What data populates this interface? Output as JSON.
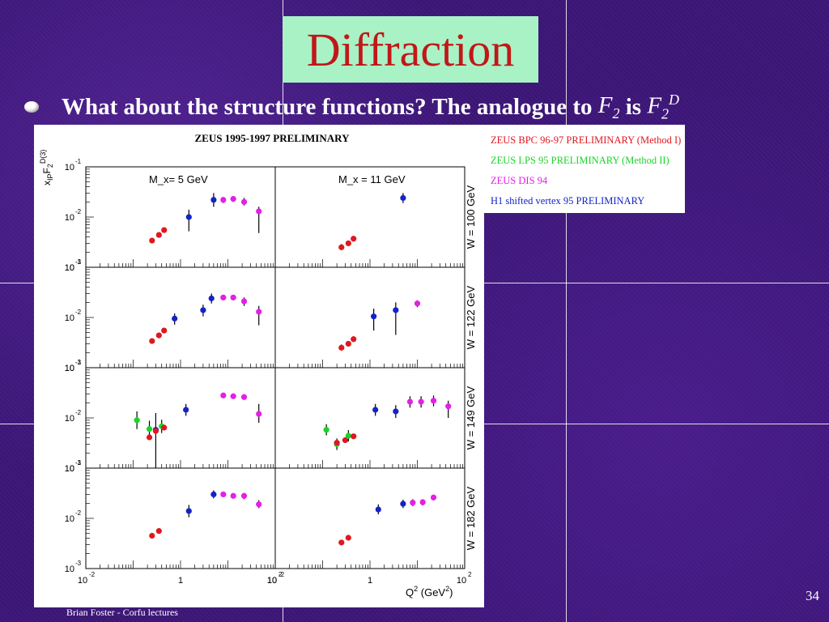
{
  "slide": {
    "title": "Diffraction",
    "bullet": {
      "text_main": "What about the structure functions? The analogue to ",
      "f2": "F",
      "f2_sub": "2",
      "is": " is ",
      "f2d": "F",
      "f2d_sub": "2",
      "f2d_sup": "D"
    },
    "footer": "Brian Foster - Corfu lectures",
    "page_number": "34",
    "colors": {
      "background": "#3c1678",
      "title_box": "#a8f2c6",
      "title_text": "#c01818",
      "text": "#ffffff"
    }
  },
  "legend": {
    "items": [
      {
        "label": "ZEUS BPC 96-97 PRELIMINARY (Method I)",
        "color": "#e0171f"
      },
      {
        "label": "ZEUS LPS 95 PRELIMINARY (Method II)",
        "color": "#19d428"
      },
      {
        "label": "ZEUS DIS 94",
        "color": "#e61ee6"
      },
      {
        "label": "H1 shifted vertex 95 PRELIMINARY",
        "color": "#1422c8"
      }
    ]
  },
  "chart_data": {
    "type": "scatter",
    "title": "ZEUS 1995-1997 PRELIMINARY",
    "ylabel": "x_IP F2^D(3)",
    "xlabel": "Q² (GeV²)",
    "x_scale": "log",
    "y_scale": "log",
    "xlim": [
      0.01,
      100
    ],
    "ylim": [
      0.001,
      0.1
    ],
    "x_tick_labels": [
      "10⁻²",
      "1",
      "10²"
    ],
    "y_tick_labels": [
      "10⁻¹",
      "10⁻²",
      "10⁻³"
    ],
    "columns": [
      "M_x= 5 GeV",
      "M_x = 11 GeV"
    ],
    "rows": [
      "W = 100 GeV",
      "W = 122 GeV",
      "W = 149 GeV",
      "W = 182 GeV"
    ],
    "series_names": [
      "ZEUS BPC 96-97 PRELIMINARY (Method I)",
      "ZEUS LPS 95 PRELIMINARY (Method II)",
      "ZEUS DIS 94",
      "H1 shifted vertex 95 PRELIMINARY"
    ],
    "series_colors": [
      "#e0171f",
      "#19d428",
      "#e61ee6",
      "#1422c8"
    ],
    "panels": [
      {
        "row": 0,
        "col": 0,
        "points": [
          {
            "s": 0,
            "x": 0.25,
            "y": 0.0034,
            "lo": 0.0031,
            "hi": 0.0037
          },
          {
            "s": 0,
            "x": 0.35,
            "y": 0.0044,
            "lo": 0.004,
            "hi": 0.0048
          },
          {
            "s": 0,
            "x": 0.45,
            "y": 0.0055,
            "lo": 0.005,
            "hi": 0.006
          },
          {
            "s": 3,
            "x": 1.5,
            "y": 0.01,
            "lo": 0.0052,
            "hi": 0.014
          },
          {
            "s": 3,
            "x": 5,
            "y": 0.022,
            "lo": 0.016,
            "hi": 0.03
          },
          {
            "s": 2,
            "x": 8,
            "y": 0.022,
            "lo": 0.019,
            "hi": 0.025
          },
          {
            "s": 2,
            "x": 13,
            "y": 0.023,
            "lo": 0.02,
            "hi": 0.026
          },
          {
            "s": 2,
            "x": 22,
            "y": 0.02,
            "lo": 0.017,
            "hi": 0.024
          },
          {
            "s": 2,
            "x": 45,
            "y": 0.013,
            "lo": 0.0048,
            "hi": 0.016
          }
        ]
      },
      {
        "row": 0,
        "col": 1,
        "points": [
          {
            "s": 0,
            "x": 0.25,
            "y": 0.0025,
            "lo": 0.0022,
            "hi": 0.0029
          },
          {
            "s": 0,
            "x": 0.35,
            "y": 0.003,
            "lo": 0.0027,
            "hi": 0.0034
          },
          {
            "s": 0,
            "x": 0.45,
            "y": 0.0037,
            "lo": 0.0033,
            "hi": 0.0042
          },
          {
            "s": 3,
            "x": 5,
            "y": 0.024,
            "lo": 0.019,
            "hi": 0.03
          }
        ]
      },
      {
        "row": 1,
        "col": 0,
        "points": [
          {
            "s": 0,
            "x": 0.25,
            "y": 0.0034,
            "lo": 0.0031,
            "hi": 0.0037
          },
          {
            "s": 0,
            "x": 0.35,
            "y": 0.0044,
            "lo": 0.004,
            "hi": 0.0048
          },
          {
            "s": 0,
            "x": 0.45,
            "y": 0.0055,
            "lo": 0.005,
            "hi": 0.006
          },
          {
            "s": 3,
            "x": 0.75,
            "y": 0.0095,
            "lo": 0.0072,
            "hi": 0.012
          },
          {
            "s": 3,
            "x": 3,
            "y": 0.014,
            "lo": 0.0105,
            "hi": 0.018
          },
          {
            "s": 3,
            "x": 4.5,
            "y": 0.024,
            "lo": 0.019,
            "hi": 0.03
          },
          {
            "s": 2,
            "x": 8,
            "y": 0.025,
            "lo": 0.022,
            "hi": 0.028
          },
          {
            "s": 2,
            "x": 13,
            "y": 0.025,
            "lo": 0.022,
            "hi": 0.028
          },
          {
            "s": 2,
            "x": 22,
            "y": 0.021,
            "lo": 0.017,
            "hi": 0.025
          },
          {
            "s": 2,
            "x": 45,
            "y": 0.013,
            "lo": 0.007,
            "hi": 0.017
          }
        ]
      },
      {
        "row": 1,
        "col": 1,
        "points": [
          {
            "s": 0,
            "x": 0.25,
            "y": 0.0025,
            "lo": 0.0022,
            "hi": 0.0029
          },
          {
            "s": 0,
            "x": 0.35,
            "y": 0.003,
            "lo": 0.0027,
            "hi": 0.0034
          },
          {
            "s": 0,
            "x": 0.45,
            "y": 0.0037,
            "lo": 0.0033,
            "hi": 0.0042
          },
          {
            "s": 3,
            "x": 1.2,
            "y": 0.0105,
            "lo": 0.0055,
            "hi": 0.015
          },
          {
            "s": 3,
            "x": 3.5,
            "y": 0.014,
            "lo": 0.0045,
            "hi": 0.02
          },
          {
            "s": 2,
            "x": 10,
            "y": 0.019,
            "lo": 0.016,
            "hi": 0.022
          }
        ]
      },
      {
        "row": 2,
        "col": 0,
        "points": [
          {
            "s": 1,
            "x": 0.12,
            "y": 0.009,
            "lo": 0.006,
            "hi": 0.0135
          },
          {
            "s": 1,
            "x": 0.22,
            "y": 0.006,
            "lo": 0.004,
            "hi": 0.0088
          },
          {
            "s": 0,
            "x": 0.22,
            "y": 0.0041,
            "lo": 0.0037,
            "hi": 0.0046
          },
          {
            "s": 3,
            "x": 0.3,
            "y": 0.0058,
            "lo": 0.001,
            "hi": 0.0125
          },
          {
            "s": 0,
            "x": 0.3,
            "y": 0.0055,
            "lo": 0.005,
            "hi": 0.006
          },
          {
            "s": 1,
            "x": 0.4,
            "y": 0.0068,
            "lo": 0.005,
            "hi": 0.0092
          },
          {
            "s": 0,
            "x": 0.45,
            "y": 0.0064,
            "lo": 0.0058,
            "hi": 0.007
          },
          {
            "s": 3,
            "x": 1.3,
            "y": 0.0145,
            "lo": 0.011,
            "hi": 0.019
          },
          {
            "s": 2,
            "x": 8,
            "y": 0.028,
            "lo": 0.025,
            "hi": 0.031
          },
          {
            "s": 2,
            "x": 13,
            "y": 0.027,
            "lo": 0.024,
            "hi": 0.03
          },
          {
            "s": 2,
            "x": 22,
            "y": 0.026,
            "lo": 0.023,
            "hi": 0.029
          },
          {
            "s": 2,
            "x": 45,
            "y": 0.012,
            "lo": 0.008,
            "hi": 0.019
          }
        ]
      },
      {
        "row": 2,
        "col": 1,
        "points": [
          {
            "s": 1,
            "x": 0.12,
            "y": 0.0058,
            "lo": 0.0045,
            "hi": 0.0075
          },
          {
            "s": 1,
            "x": 0.2,
            "y": 0.003,
            "lo": 0.0023,
            "hi": 0.0039
          },
          {
            "s": 0,
            "x": 0.2,
            "y": 0.0032,
            "lo": 0.0029,
            "hi": 0.0036
          },
          {
            "s": 0,
            "x": 0.3,
            "y": 0.0036,
            "lo": 0.0032,
            "hi": 0.004
          },
          {
            "s": 1,
            "x": 0.35,
            "y": 0.0044,
            "lo": 0.0034,
            "hi": 0.0057
          },
          {
            "s": 0,
            "x": 0.45,
            "y": 0.0043,
            "lo": 0.0039,
            "hi": 0.0048
          },
          {
            "s": 3,
            "x": 1.3,
            "y": 0.0145,
            "lo": 0.011,
            "hi": 0.019
          },
          {
            "s": 3,
            "x": 3.5,
            "y": 0.0135,
            "lo": 0.01,
            "hi": 0.018
          },
          {
            "s": 2,
            "x": 7,
            "y": 0.021,
            "lo": 0.016,
            "hi": 0.027
          },
          {
            "s": 2,
            "x": 12,
            "y": 0.021,
            "lo": 0.016,
            "hi": 0.027
          },
          {
            "s": 2,
            "x": 22,
            "y": 0.022,
            "lo": 0.017,
            "hi": 0.028
          },
          {
            "s": 2,
            "x": 45,
            "y": 0.017,
            "lo": 0.01,
            "hi": 0.022
          }
        ]
      },
      {
        "row": 3,
        "col": 0,
        "points": [
          {
            "s": 0,
            "x": 0.25,
            "y": 0.0045,
            "lo": 0.0041,
            "hi": 0.005
          },
          {
            "s": 0,
            "x": 0.35,
            "y": 0.0056,
            "lo": 0.0051,
            "hi": 0.0062
          },
          {
            "s": 3,
            "x": 1.5,
            "y": 0.014,
            "lo": 0.0105,
            "hi": 0.0185
          },
          {
            "s": 3,
            "x": 5,
            "y": 0.03,
            "lo": 0.025,
            "hi": 0.036
          },
          {
            "s": 2,
            "x": 8,
            "y": 0.03,
            "lo": 0.027,
            "hi": 0.033
          },
          {
            "s": 2,
            "x": 13,
            "y": 0.028,
            "lo": 0.025,
            "hi": 0.031
          },
          {
            "s": 2,
            "x": 22,
            "y": 0.028,
            "lo": 0.024,
            "hi": 0.032
          },
          {
            "s": 2,
            "x": 45,
            "y": 0.019,
            "lo": 0.016,
            "hi": 0.023
          }
        ]
      },
      {
        "row": 3,
        "col": 1,
        "points": [
          {
            "s": 0,
            "x": 0.25,
            "y": 0.0033,
            "lo": 0.003,
            "hi": 0.0036
          },
          {
            "s": 0,
            "x": 0.35,
            "y": 0.0041,
            "lo": 0.0037,
            "hi": 0.0045
          },
          {
            "s": 3,
            "x": 1.5,
            "y": 0.015,
            "lo": 0.012,
            "hi": 0.019
          },
          {
            "s": 3,
            "x": 5,
            "y": 0.0195,
            "lo": 0.016,
            "hi": 0.0235
          },
          {
            "s": 2,
            "x": 8,
            "y": 0.0205,
            "lo": 0.0175,
            "hi": 0.024
          },
          {
            "s": 2,
            "x": 13,
            "y": 0.021,
            "lo": 0.018,
            "hi": 0.024
          },
          {
            "s": 2,
            "x": 22,
            "y": 0.026,
            "lo": 0.023,
            "hi": 0.029
          }
        ]
      }
    ]
  }
}
